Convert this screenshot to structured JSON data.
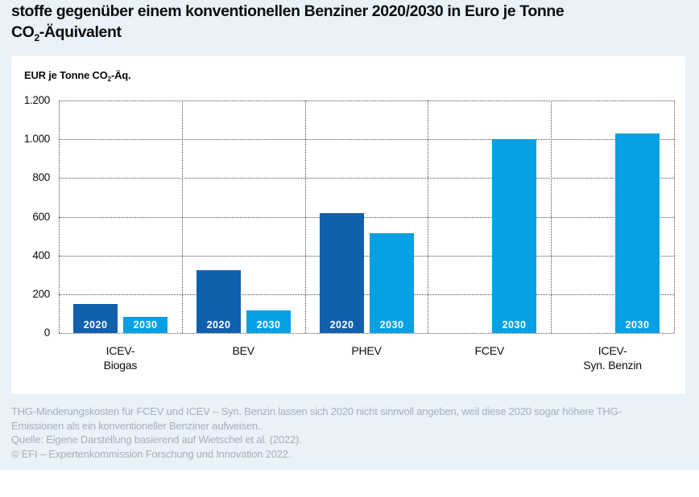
{
  "title": {
    "line1": "stoffe gegenüber einem konventionellen Benziner 2020/2030 in Euro je Tonne",
    "line2_pre": "CO",
    "line2_sub": "2",
    "line2_post": "-Äquivalent"
  },
  "axis_label": {
    "pre": "EUR je Tonne CO",
    "sub": "2",
    "post": "-Äq."
  },
  "chart_data": {
    "type": "bar",
    "categories": [
      [
        "ICEV-",
        "Biogas"
      ],
      [
        "BEV"
      ],
      [
        "PHEV"
      ],
      [
        "FCEV"
      ],
      [
        "ICEV-",
        "Syn. Benzin"
      ]
    ],
    "series": [
      {
        "name": "2020",
        "color": "#1160ae",
        "values": [
          150,
          325,
          620,
          null,
          null
        ]
      },
      {
        "name": "2030",
        "color": "#07a0e4",
        "values": [
          85,
          115,
          515,
          1000,
          1030
        ]
      }
    ],
    "bar_label_source": "series-name",
    "ylim": [
      0,
      1200
    ],
    "yticks": [
      0,
      200,
      400,
      600,
      800,
      1000,
      1200
    ],
    "ytick_labels": [
      "0",
      "200",
      "400",
      "600",
      "800",
      "1.000",
      "1.200"
    ],
    "grid": "dotted horizontal gridlines and dotted vertical group separators",
    "legend": "none (year shown inside each bar)"
  },
  "footnote": {
    "lines": [
      "THG-Minderungskosten für FCEV und ICEV – Syn. Benzin lassen sich 2020 nicht sinnvoll angeben, weil diese 2020 sogar höhere THG-",
      "Emissionen als ein konventioneller Benziner aufweisen.",
      "Quelle: Eigene Darstellung basierend auf Wietschel et al. (2022).",
      "© EFI – Expertenkommission Forschung und Innovation 2022."
    ]
  },
  "colors": {
    "background": "#e9f2f9",
    "panel": "#ffffff",
    "bar_2020": "#1160ae",
    "bar_2030": "#07a0e4",
    "grid": "#4d4d4d",
    "text": "#0d0d0d",
    "footnote_text": "#a7b1bb",
    "bar_label_text": "#ffffff"
  }
}
